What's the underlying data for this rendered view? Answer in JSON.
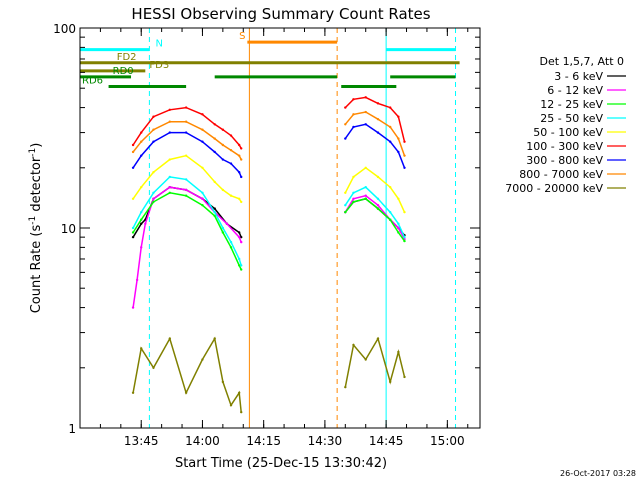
{
  "chart_data": {
    "type": "line",
    "title": "HESSI Observing Summary Count Rates",
    "xlabel": "Start Time (25-Dec-15 13:30:42)",
    "ylabel": "Count Rate (s⁻¹ detector⁻¹)",
    "ylabel_main": "Count Rate (s",
    "ylabel_sup1": "-1",
    "ylabel_mid": " detector",
    "ylabel_sup2": "-1",
    "ylabel_end": ")",
    "yscale": "log",
    "ylim": [
      1,
      100
    ],
    "xlim_minutes": [
      0,
      98
    ],
    "x_ticks": [
      {
        "t": 15,
        "label": "13:45"
      },
      {
        "t": 30,
        "label": "14:00"
      },
      {
        "t": 45,
        "label": "14:15"
      },
      {
        "t": 60,
        "label": "14:30"
      },
      {
        "t": 75,
        "label": "14:45"
      },
      {
        "t": 90,
        "label": "15:00"
      }
    ],
    "y_ticks": [
      {
        "v": 1,
        "label": "1"
      },
      {
        "v": 10,
        "label": "10"
      },
      {
        "v": 100,
        "label": "100"
      }
    ],
    "legend_header": "Det 1,5,7, Att 0",
    "legend_placement": "right",
    "timestamp": "26-Oct-2017 03:28",
    "series": [
      {
        "name": "3 - 6 keV",
        "color": "#000000",
        "segments": [
          {
            "t": [
              13,
              15,
              16,
              18,
              22,
              26,
              30,
              33,
              36,
              39,
              39.5
            ],
            "v": [
              9,
              10.5,
              11,
              14,
              16,
              15.5,
              14,
              12.5,
              10.5,
              9.5,
              9
            ]
          },
          {
            "t": [
              65,
              67,
              70,
              73,
              76,
              78,
              79.5
            ],
            "v": [
              12,
              13.5,
              14,
              12.5,
              11,
              10,
              9.2
            ]
          }
        ]
      },
      {
        "name": "6 - 12 keV",
        "color": "#ff00ff",
        "segments": [
          {
            "t": [
              13,
              14,
              15,
              16,
              18,
              22,
              26,
              30,
              33,
              36,
              39,
              39.5
            ],
            "v": [
              4,
              5.5,
              8,
              10.5,
              14,
              16,
              15.5,
              14,
              12,
              10.5,
              9,
              8.5
            ]
          },
          {
            "t": [
              65,
              67,
              70,
              73,
              76,
              78,
              79.5
            ],
            "v": [
              12,
              14,
              14.5,
              13,
              11,
              10,
              8.8
            ]
          }
        ]
      },
      {
        "name": "12 - 25 keV",
        "color": "#00ff00",
        "segments": [
          {
            "t": [
              13,
              15,
              18,
              22,
              26,
              30,
              33,
              35,
              37,
              39,
              39.5
            ],
            "v": [
              9.5,
              11,
              13.5,
              15,
              14.5,
              13,
              11.5,
              9.5,
              8,
              6.5,
              6.2
            ]
          },
          {
            "t": [
              65,
              67,
              70,
              73,
              76,
              78,
              79.5
            ],
            "v": [
              12,
              13.5,
              14,
              12.5,
              11,
              9.5,
              8.6
            ]
          }
        ]
      },
      {
        "name": "25 - 50 keV",
        "color": "#00ffff",
        "segments": [
          {
            "t": [
              13,
              15,
              18,
              22,
              26,
              30,
              33,
              35,
              37,
              39,
              39.5
            ],
            "v": [
              10,
              12,
              15,
              18,
              17.5,
              15,
              12,
              10,
              8.5,
              7,
              6.5
            ]
          },
          {
            "t": [
              65,
              67,
              70,
              73,
              76,
              78,
              79.5
            ],
            "v": [
              13,
              15,
              16,
              14,
              12,
              10.5,
              9
            ]
          }
        ]
      },
      {
        "name": "50 - 100 keV",
        "color": "#ffff00",
        "segments": [
          {
            "t": [
              13,
              15,
              18,
              22,
              26,
              30,
              33,
              35,
              37,
              39,
              39.5
            ],
            "v": [
              14,
              16,
              19,
              22,
              23,
              20,
              17,
              15.5,
              14.5,
              14,
              13.5
            ]
          },
          {
            "t": [
              65,
              67,
              70,
              73,
              76,
              78,
              79.5
            ],
            "v": [
              15,
              18,
              20,
              18,
              16,
              14,
              12
            ]
          }
        ]
      },
      {
        "name": "100 - 300 keV",
        "color": "#ff0000",
        "segments": [
          {
            "t": [
              13,
              15,
              18,
              22,
              26,
              30,
              33,
              35,
              37,
              39,
              39.5
            ],
            "v": [
              26,
              30,
              36,
              39,
              40,
              37,
              33,
              31,
              29,
              26,
              25
            ]
          },
          {
            "t": [
              65,
              67,
              70,
              73,
              76,
              78,
              79.5
            ],
            "v": [
              40,
              44,
              45,
              42,
              40,
              36,
              27
            ]
          }
        ]
      },
      {
        "name": "300 - 800 keV",
        "color": "#0000ff",
        "segments": [
          {
            "t": [
              13,
              15,
              18,
              22,
              26,
              30,
              33,
              35,
              37,
              39,
              39.5
            ],
            "v": [
              20,
              23,
              27,
              30,
              30,
              27,
              24,
              22,
              21,
              19,
              18
            ]
          },
          {
            "t": [
              65,
              67,
              70,
              73,
              76,
              78,
              79.5
            ],
            "v": [
              28,
              32,
              33,
              30,
              27,
              24,
              20
            ]
          }
        ]
      },
      {
        "name": "800 - 7000 keV",
        "color": "#ff8800",
        "segments": [
          {
            "t": [
              13,
              15,
              18,
              22,
              26,
              30,
              33,
              35,
              37,
              39,
              39.5
            ],
            "v": [
              24,
              27,
              31,
              34,
              34,
              31,
              28,
              26,
              24.5,
              23,
              22
            ]
          },
          {
            "t": [
              65,
              67,
              70,
              73,
              76,
              78,
              79.5
            ],
            "v": [
              33,
              37,
              38,
              35,
              32,
              28,
              23
            ]
          }
        ]
      },
      {
        "name": "7000 - 20000 keV",
        "color": "#808000",
        "segments": [
          {
            "t": [
              13,
              15,
              18,
              22,
              26,
              30,
              33,
              35,
              37,
              39,
              39.5
            ],
            "v": [
              1.5,
              2.5,
              2.0,
              2.8,
              1.5,
              2.2,
              2.8,
              1.7,
              1.3,
              1.5,
              1.2
            ]
          },
          {
            "t": [
              65,
              67,
              70,
              73,
              76,
              78,
              79.5
            ],
            "v": [
              1.6,
              2.6,
              2.2,
              2.8,
              1.7,
              2.4,
              1.8
            ]
          }
        ]
      }
    ],
    "flag_bars": [
      {
        "label": "N",
        "color": "#00ffff",
        "level": 78,
        "ranges": [
          [
            0,
            17
          ],
          [
            75,
            92
          ]
        ]
      },
      {
        "label": "S",
        "color": "#ff8800",
        "level": 85,
        "ranges": [
          [
            41,
            63
          ]
        ]
      },
      {
        "label": "FD2",
        "color": "#808000",
        "level": 67,
        "ranges": [
          [
            0,
            93
          ]
        ]
      },
      {
        "label": "FD3",
        "color": "#808000",
        "level": 61,
        "ranges": [
          [
            0,
            16
          ]
        ]
      },
      {
        "label": "RD0",
        "color": "#008800",
        "level": 57,
        "ranges": [
          [
            0,
            12.5
          ],
          [
            33,
            63
          ],
          [
            76,
            92
          ]
        ]
      },
      {
        "label": "RD6",
        "color": "#008800",
        "level": 51,
        "ranges": [
          [
            7,
            26
          ],
          [
            64,
            77.5
          ]
        ]
      }
    ],
    "vertical_markers": [
      {
        "t": 17,
        "color": "#00ffff",
        "style": "dashed"
      },
      {
        "t": 41.5,
        "color": "#ff8800",
        "style": "solid"
      },
      {
        "t": 63,
        "color": "#ff8800",
        "style": "dashed"
      },
      {
        "t": 75,
        "color": "#00ffff",
        "style": "solid"
      },
      {
        "t": 92,
        "color": "#00ffff",
        "style": "dashed"
      }
    ]
  }
}
